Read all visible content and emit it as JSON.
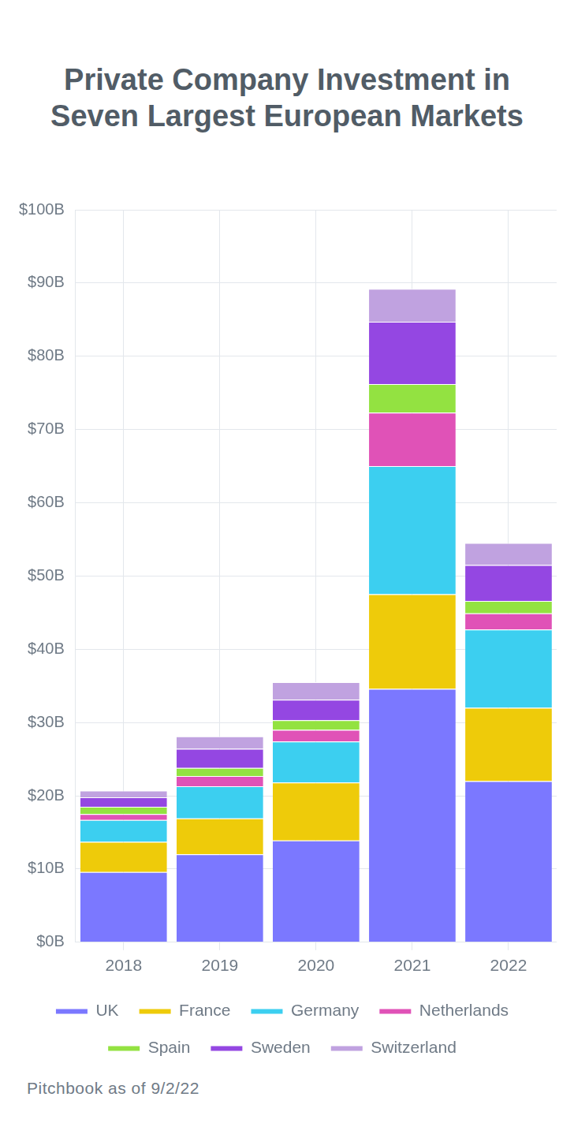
{
  "chart_data": {
    "type": "bar",
    "title": "Private Company Investment in Seven Largest European Markets",
    "source": "Pitchbook as of 9/2/22",
    "categories": [
      "2018",
      "2019",
      "2020",
      "2021",
      "2022"
    ],
    "series": [
      {
        "name": "UK",
        "color": "#7b78ff",
        "values": [
          9.6,
          12.0,
          13.9,
          34.6,
          22.0
        ]
      },
      {
        "name": "France",
        "color": "#eecb0a",
        "values": [
          4.1,
          4.9,
          7.9,
          12.9,
          10.0
        ]
      },
      {
        "name": "Germany",
        "color": "#3ccff0",
        "values": [
          3.0,
          4.4,
          5.6,
          17.5,
          10.7
        ]
      },
      {
        "name": "Netherlands",
        "color": "#e052b7",
        "values": [
          0.8,
          1.4,
          1.6,
          7.3,
          2.2
        ]
      },
      {
        "name": "Spain",
        "color": "#93e241",
        "values": [
          1.0,
          1.1,
          1.3,
          3.9,
          1.7
        ]
      },
      {
        "name": "Sweden",
        "color": "#9447e2",
        "values": [
          1.3,
          2.6,
          2.8,
          8.5,
          4.9
        ]
      },
      {
        "name": "Switzerland",
        "color": "#c0a2e0",
        "values": [
          0.9,
          1.7,
          2.4,
          4.5,
          3.0
        ]
      }
    ],
    "ylim": [
      0,
      100
    ],
    "yticks": [
      {
        "value": 0,
        "label": "$0B"
      },
      {
        "value": 10,
        "label": "$10B"
      },
      {
        "value": 20,
        "label": "$20B"
      },
      {
        "value": 30,
        "label": "$30B"
      },
      {
        "value": 40,
        "label": "$40B"
      },
      {
        "value": 50,
        "label": "$50B"
      },
      {
        "value": 60,
        "label": "$60B"
      },
      {
        "value": 70,
        "label": "$70B"
      },
      {
        "value": 80,
        "label": "$80B"
      },
      {
        "value": 90,
        "label": "$90B"
      },
      {
        "value": 100,
        "label": "$100B"
      }
    ],
    "stacked": true,
    "grid": true,
    "legend": "bottom"
  }
}
